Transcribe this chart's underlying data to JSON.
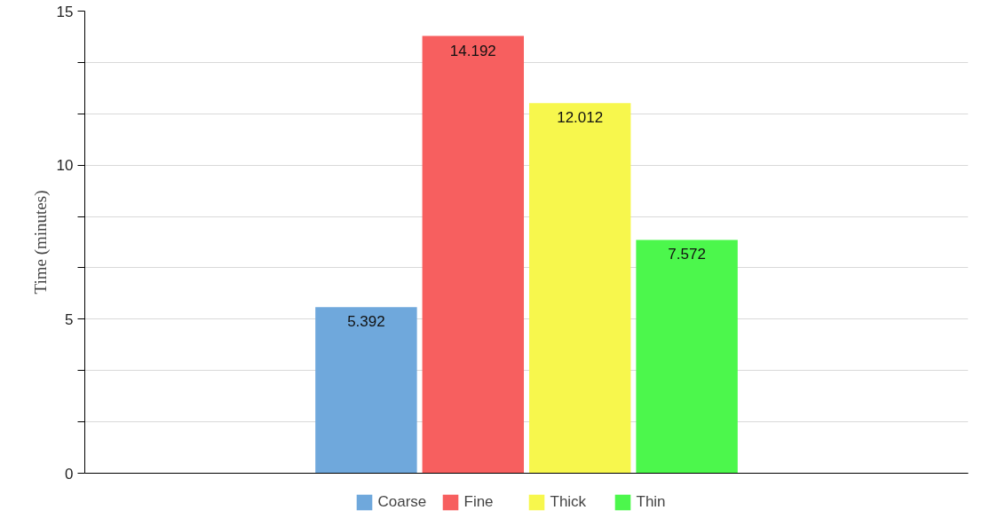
{
  "chart_data": {
    "type": "bar",
    "ylabel": "Time (minutes)",
    "categories": [
      null
    ],
    "series": [
      {
        "name": "Coarse",
        "color": "#6fa8dc",
        "values": [
          5.392
        ]
      },
      {
        "name": "Fine",
        "color": "#f75f5f",
        "values": [
          14.192
        ]
      },
      {
        "name": "Thick",
        "color": "#f7f74d",
        "values": [
          12.012
        ]
      },
      {
        "name": "Thin",
        "color": "#4cf74c",
        "values": [
          7.572
        ]
      }
    ],
    "ylim": [
      0,
      15
    ],
    "yticks": [
      0,
      {
        "value": 1.667,
        "label": null
      },
      {
        "value": 3.333,
        "label": null
      },
      5,
      {
        "value": 6.667,
        "label": null
      },
      {
        "value": 8.333,
        "label": null
      },
      10,
      {
        "value": 11.667,
        "label": null
      },
      {
        "value": 13.333,
        "label": null
      },
      15
    ],
    "grid": "y",
    "legend": "bottom",
    "data_labels": true,
    "tick_labels": "y"
  }
}
